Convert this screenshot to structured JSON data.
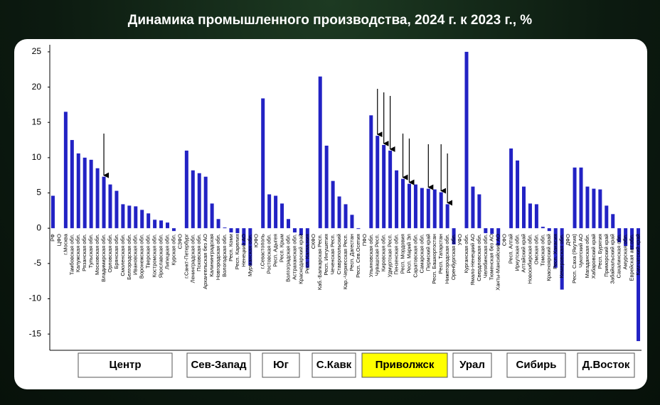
{
  "chart_data": {
    "type": "bar",
    "title": "Динамика промышленного производства, 2024 г. к 2023 г., %",
    "color": "#2222c4",
    "ylim": [
      -17,
      26
    ],
    "yticks": [
      -15,
      -10,
      -5,
      0,
      5,
      10,
      15,
      20,
      25
    ],
    "categories": [
      "РФ",
      "ЦФО",
      "г.Москва",
      "Тамбовская обл.",
      "Калужская обл.",
      "Рязанская обл.",
      "Тульская обл.",
      "Московская обл.",
      "Владимирская обл.",
      "Орловская обл.",
      "Брянская обл.",
      "Смоленская обл.",
      "Белгородская обл.",
      "Ивановская обл.",
      "Воронежская обл.",
      "Тверская обл.",
      "Костромская обл.",
      "Ярославская обл.",
      "Липецкая обл.",
      "Курская обл.",
      "СЗФО",
      "г.Санкт-Петербург",
      "Ленинградская обл.",
      "Псковская обл.",
      "Архангельская без АО",
      "Калининградская",
      "Новгородская обл.",
      "Вологодская обл.",
      "Респ. Коми",
      "Респ. Карелия",
      "Ненецкий АО",
      "Мурманская обл.",
      "ЮФО",
      "г.Севастополь",
      "Ростовская обл.",
      "Респ. Адыгея",
      "Респ. Крым",
      "Волгоградская обл.",
      "Астраханская обл.",
      "Краснодарский край",
      "Респ. Калмыкия",
      "СКФО",
      "Каб.-Балкарская Респ.",
      "Респ. Ингушетия",
      "Чеченская Респ.",
      "Ставропольский",
      "Кар.-Черкесская Респ.",
      "Респ. Дагестан",
      "Респ. Сев.Осетия",
      "ПФО",
      "Ульяновская обл.",
      "Чувашская Респ.",
      "Кировская обл.",
      "Удмуртская Респ.",
      "Пензенская обл.",
      "Респ. Мордовия",
      "Респ. Марий Эл",
      "Саратовская обл.",
      "Самарская обл.",
      "Пермский край",
      "Респ. Башкортостан",
      "Респ. Татарстан",
      "Нижегородская обл.",
      "Оренбургская обл.",
      "УФО",
      "Курганская обл.",
      "Ямало-Ненецкий АО",
      "Свердловская обл.",
      "Челябинская обл.",
      "Тюменская без АО",
      "Ханты-Мансийский АО",
      "СФО",
      "Респ. Алтай",
      "Иркутская обл.",
      "Алтайский край",
      "Новосибирская обл.",
      "Омская обл.",
      "Томская обл.",
      "Красноярский край",
      "Респ. Хакасия",
      "Кемеровская обл.",
      "ДФО",
      "Респ. Саха (Якутия)",
      "Чукотский АО",
      "Магаданская обл.",
      "Хабаровский край",
      "Респ. Бурятия",
      "Приморский край",
      "Забайкальский край",
      "Сахалинская обл.",
      "Амурская обл.",
      "Еврейская авт.обл.",
      "Камчатский край"
    ],
    "values": [
      4.6,
      null,
      16.5,
      12.5,
      10.6,
      10.0,
      9.7,
      8.5,
      7.3,
      6.2,
      5.3,
      3.4,
      3.2,
      3.1,
      2.6,
      2.1,
      1.2,
      1.1,
      0.8,
      -0.4,
      null,
      11.0,
      8.2,
      7.8,
      7.3,
      3.5,
      1.3,
      0.1,
      -0.6,
      -0.7,
      -2.4,
      -5.3,
      null,
      18.4,
      4.8,
      4.6,
      3.5,
      1.3,
      -0.6,
      -1.0,
      -5.6,
      null,
      21.5,
      11.7,
      6.7,
      4.5,
      3.4,
      1.9,
      -0.1,
      null,
      16.0,
      13.1,
      11.8,
      11.0,
      8.2,
      7.0,
      6.3,
      6.2,
      5.7,
      5.6,
      5.5,
      5.1,
      3.4,
      -2.3,
      null,
      25.0,
      5.9,
      4.8,
      -0.7,
      -0.8,
      -2.4,
      null,
      11.3,
      9.6,
      5.9,
      3.5,
      3.4,
      0.2,
      -0.4,
      -5.6,
      -8.7,
      null,
      8.6,
      8.6,
      5.9,
      5.6,
      5.5,
      3.2,
      2.0,
      -2.0,
      -2.5,
      -3.0,
      -16.0
    ],
    "groups": [
      {
        "name": "Центр",
        "color": "#ffffff"
      },
      {
        "name": "Сев-Запад",
        "color": "#ffffff"
      },
      {
        "name": "Юг",
        "color": "#ffffff"
      },
      {
        "name": "С.Кавк",
        "color": "#ffffff"
      },
      {
        "name": "Приволжск",
        "color": "#ffff00"
      },
      {
        "name": "Урал",
        "color": "#ffffff"
      },
      {
        "name": "Сибирь",
        "color": "#ffffff"
      },
      {
        "name": "Д.Восток",
        "color": "#ffffff"
      }
    ]
  }
}
